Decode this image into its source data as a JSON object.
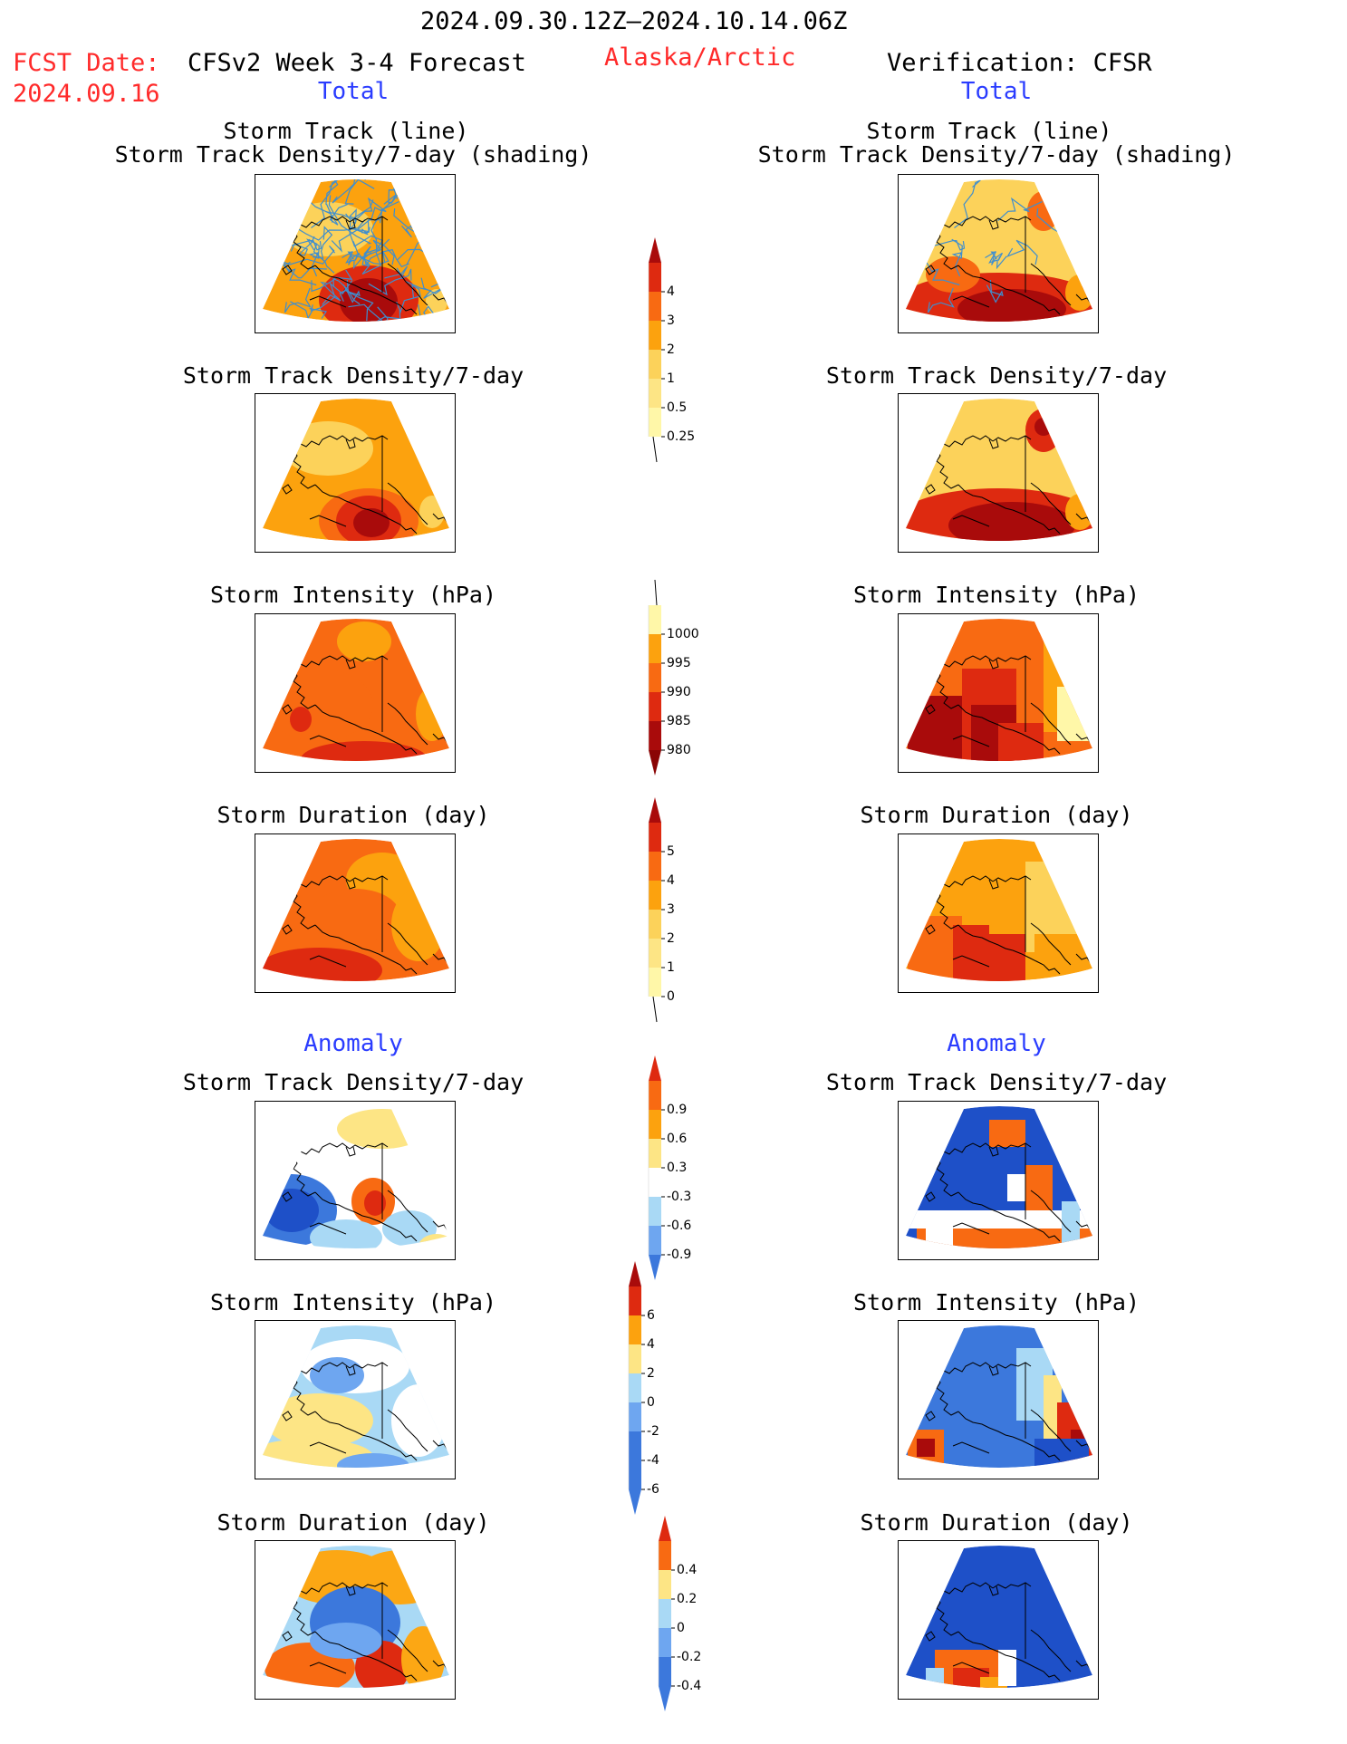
{
  "header": {
    "period": "2024.09.30.12Z–2024.10.14.06Z",
    "fcst_label": "FCST Date:",
    "fcst_date": "2024.09.16",
    "model": "CFSv2 Week 3-4 Forecast",
    "region": "Alaska/Arctic",
    "verification": "Verification: CFSR"
  },
  "sections": {
    "total": "Total",
    "anomaly": "Anomaly"
  },
  "titles": {
    "track_line": "Storm Track (line)",
    "track_density_shading": "Storm Track Density/7-day (shading)",
    "track_density": "Storm Track Density/7-day",
    "intensity": "Storm Intensity (hPa)",
    "duration": "Storm Duration (day)"
  },
  "colorbars": {
    "density_total": [
      "4",
      "3",
      "2",
      "1",
      "0.5",
      "0.25"
    ],
    "intensity_total": [
      "1000",
      "995",
      "990",
      "985",
      "980"
    ],
    "duration_total": [
      "5",
      "4",
      "3",
      "2",
      "1",
      "0"
    ],
    "density_anom": [
      "0.9",
      "0.6",
      "0.3",
      "-0.3",
      "-0.6",
      "-0.9"
    ],
    "intensity_anom": [
      "6",
      "4",
      "2",
      "0",
      "-2",
      "-4",
      "-6"
    ],
    "duration_anom": [
      "0.4",
      "0.2",
      "0",
      "-0.2",
      "-0.4"
    ]
  },
  "colors": {
    "warm": [
      "#fff7a8",
      "#fcd25a",
      "#fca20e",
      "#f86a12",
      "#de2a10",
      "#a90b0b"
    ],
    "cool": [
      "#1e50c8",
      "#3c78dc",
      "#6ea6f0",
      "#a9d9f5",
      "#ffffff",
      "#fde585",
      "#fca714",
      "#f86a12",
      "#de2a10"
    ],
    "track": "#3e8ecf"
  }
}
